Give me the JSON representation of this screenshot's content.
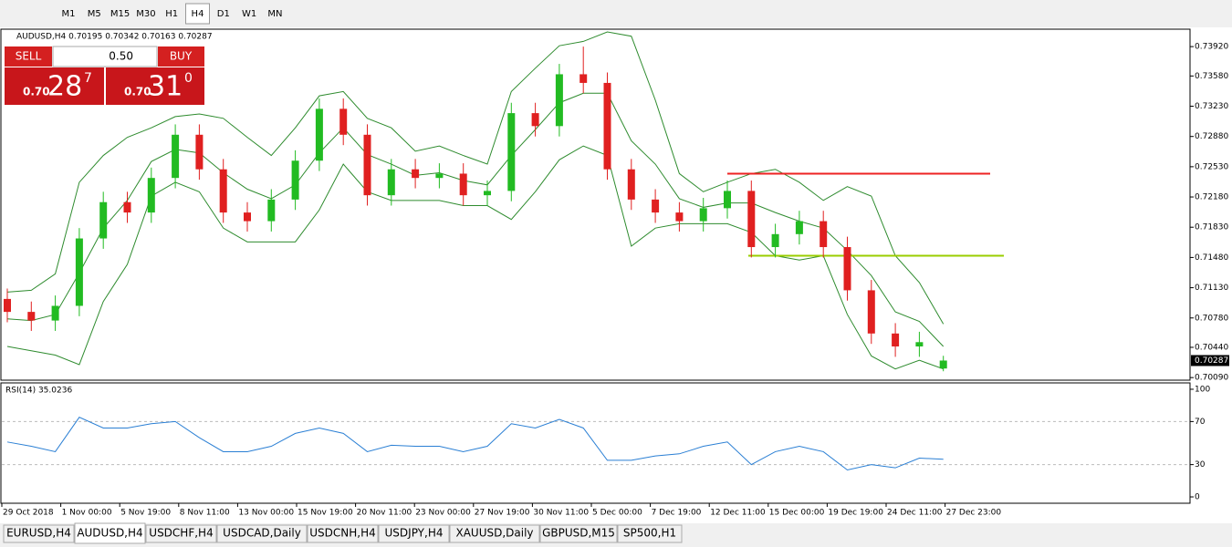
{
  "toolbar": {
    "timeframes": [
      "M1",
      "M5",
      "M15",
      "M30",
      "H1",
      "H4",
      "D1",
      "W1",
      "MN"
    ],
    "active": "H4"
  },
  "header": "AUDUSD,H4  0.70195 0.70342 0.70163 0.70287",
  "trade_panel": {
    "sell": "SELL",
    "buy": "BUY",
    "lots": "0.50",
    "bid": {
      "prefix": "0.70",
      "big": "28",
      "small": "7"
    },
    "ask": {
      "prefix": "0.70",
      "big": "31",
      "small": "0"
    }
  },
  "chart_data": [
    {
      "type": "candlestick",
      "x_labels": [
        "29 Oct 2018",
        "1 Nov 00:00",
        "5 Nov 19:00",
        "8 Nov 11:00",
        "13 Nov 00:00",
        "15 Nov 19:00",
        "20 Nov 11:00",
        "23 Nov 00:00",
        "27 Nov 19:00",
        "30 Nov 11:00",
        "5 Dec 00:00",
        "7 Dec 19:00",
        "12 Dec 11:00",
        "15 Dec 00:00",
        "19 Dec 19:00",
        "24 Dec 11:00",
        "27 Dec 23:00"
      ],
      "open": [
        0.71,
        0.7085,
        0.7075,
        0.7092,
        0.717,
        0.7212,
        0.72,
        0.724,
        0.729,
        0.725,
        0.72,
        0.719,
        0.7215,
        0.726,
        0.732,
        0.729,
        0.722,
        0.725,
        0.724,
        0.7245,
        0.722,
        0.7225,
        0.7315,
        0.73,
        0.736,
        0.735,
        0.725,
        0.7215,
        0.72,
        0.719,
        0.7205,
        0.7225,
        0.716,
        0.7175,
        0.719,
        0.716,
        0.711,
        0.706,
        0.7045,
        0.70195
      ],
      "high": [
        0.7112,
        0.7097,
        0.7104,
        0.7182,
        0.7224,
        0.7224,
        0.7252,
        0.7302,
        0.7302,
        0.7262,
        0.7212,
        0.7227,
        0.7272,
        0.7332,
        0.7332,
        0.7302,
        0.7262,
        0.7262,
        0.7257,
        0.7257,
        0.7237,
        0.7327,
        0.7327,
        0.7372,
        0.7392,
        0.7362,
        0.7262,
        0.7227,
        0.7212,
        0.7217,
        0.7237,
        0.7237,
        0.7187,
        0.7202,
        0.7202,
        0.7172,
        0.7122,
        0.7072,
        0.7062,
        0.70342
      ],
      "low": [
        0.7073,
        0.7063,
        0.7063,
        0.708,
        0.7158,
        0.7188,
        0.7188,
        0.7228,
        0.7238,
        0.7188,
        0.7178,
        0.7178,
        0.7203,
        0.7248,
        0.7278,
        0.7208,
        0.7208,
        0.7228,
        0.7228,
        0.7208,
        0.7208,
        0.7213,
        0.7288,
        0.7288,
        0.7338,
        0.7238,
        0.7203,
        0.7188,
        0.7178,
        0.7178,
        0.7193,
        0.7148,
        0.7148,
        0.7163,
        0.7148,
        0.7098,
        0.7048,
        0.7033,
        0.7033,
        0.70163
      ],
      "close": [
        0.7085,
        0.7075,
        0.7092,
        0.717,
        0.7212,
        0.72,
        0.724,
        0.729,
        0.725,
        0.72,
        0.719,
        0.7215,
        0.726,
        0.732,
        0.729,
        0.722,
        0.725,
        0.724,
        0.7245,
        0.722,
        0.7225,
        0.7315,
        0.73,
        0.736,
        0.735,
        0.725,
        0.7215,
        0.72,
        0.719,
        0.7205,
        0.7225,
        0.716,
        0.7175,
        0.719,
        0.716,
        0.711,
        0.706,
        0.7045,
        0.705,
        0.70287
      ],
      "bb_upper": [
        0.7108,
        0.711,
        0.7129,
        0.7235,
        0.7266,
        0.7287,
        0.7298,
        0.7311,
        0.7314,
        0.7309,
        0.7287,
        0.7266,
        0.7298,
        0.7335,
        0.734,
        0.7309,
        0.7298,
        0.7271,
        0.7277,
        0.7266,
        0.7256,
        0.734,
        0.7367,
        0.7393,
        0.7398,
        0.7409,
        0.7404,
        0.733,
        0.7245,
        0.7224,
        0.7235,
        0.7245,
        0.725,
        0.7235,
        0.7214,
        0.723,
        0.7219,
        0.715,
        0.7119,
        0.7071
      ],
      "bb_middle": [
        0.7077,
        0.7075,
        0.7082,
        0.713,
        0.7182,
        0.7214,
        0.7259,
        0.7273,
        0.7269,
        0.7246,
        0.7227,
        0.7216,
        0.7232,
        0.7269,
        0.7298,
        0.7267,
        0.7256,
        0.7243,
        0.7246,
        0.7237,
        0.7232,
        0.7266,
        0.7296,
        0.7327,
        0.7338,
        0.7338,
        0.7283,
        0.7256,
        0.7216,
        0.7206,
        0.7211,
        0.7211,
        0.72,
        0.719,
        0.7182,
        0.7156,
        0.7127,
        0.7085,
        0.7074,
        0.7045
      ],
      "bb_lower": [
        0.7045,
        0.704,
        0.7035,
        0.7024,
        0.7097,
        0.714,
        0.7219,
        0.7235,
        0.7224,
        0.7182,
        0.7166,
        0.7166,
        0.7166,
        0.7203,
        0.7256,
        0.7224,
        0.7214,
        0.7214,
        0.7214,
        0.7208,
        0.7208,
        0.7192,
        0.7224,
        0.7261,
        0.7277,
        0.7266,
        0.7161,
        0.7182,
        0.7187,
        0.7187,
        0.7187,
        0.7177,
        0.715,
        0.7145,
        0.715,
        0.7082,
        0.7034,
        0.7019,
        0.7029,
        0.7019
      ],
      "bb_color": "#2e8b2e",
      "up_color": "#22bb22",
      "down_color": "#e02020",
      "levels": [
        {
          "value": 0.7245,
          "color": "#ee2222"
        },
        {
          "value": 0.715,
          "color": "#9acd00"
        }
      ],
      "current_price": {
        "value": 0.70287,
        "label": "0.70287"
      },
      "ylim": [
        0.7006,
        0.7409
      ],
      "yticks": [
        {
          "value": 0.7392,
          "label": "0.73920"
        },
        {
          "value": 0.7358,
          "label": "0.73580"
        },
        {
          "value": 0.7323,
          "label": "0.73230"
        },
        {
          "value": 0.7288,
          "label": "0.72880"
        },
        {
          "value": 0.7253,
          "label": "0.72530"
        },
        {
          "value": 0.7218,
          "label": "0.72180"
        },
        {
          "value": 0.7183,
          "label": "0.71830"
        },
        {
          "value": 0.7148,
          "label": "0.71480"
        },
        {
          "value": 0.7113,
          "label": "0.71130"
        },
        {
          "value": 0.7078,
          "label": "0.70780"
        },
        {
          "value": 0.7044,
          "label": "0.70440"
        },
        {
          "value": 0.7009,
          "label": "0.70090"
        }
      ]
    },
    {
      "type": "line",
      "title": "RSI(14) 35.0236",
      "color": "#2a7fd4",
      "values": [
        51,
        47,
        42,
        74,
        64,
        64,
        68,
        70,
        55,
        42,
        42,
        47,
        59,
        64,
        59,
        42,
        48,
        47,
        47,
        42,
        47,
        68,
        64,
        72,
        64,
        34,
        34,
        38,
        40,
        47,
        51,
        30,
        42,
        47,
        42,
        25,
        30,
        27,
        36,
        35
      ],
      "ylim": [
        -5.9,
        105.9
      ],
      "yticks": [
        100,
        70,
        30,
        0
      ],
      "levels": [
        70,
        30
      ]
    }
  ],
  "tabs": [
    "EURUSD,H4",
    "AUDUSD,H4",
    "USDCHF,H4",
    "USDCAD,Daily",
    "USDCNH,H4",
    "USDJPY,H4",
    "XAUUSD,Daily",
    "GBPUSD,M15",
    "SP500,H1"
  ],
  "active_tab": "AUDUSD,H4"
}
